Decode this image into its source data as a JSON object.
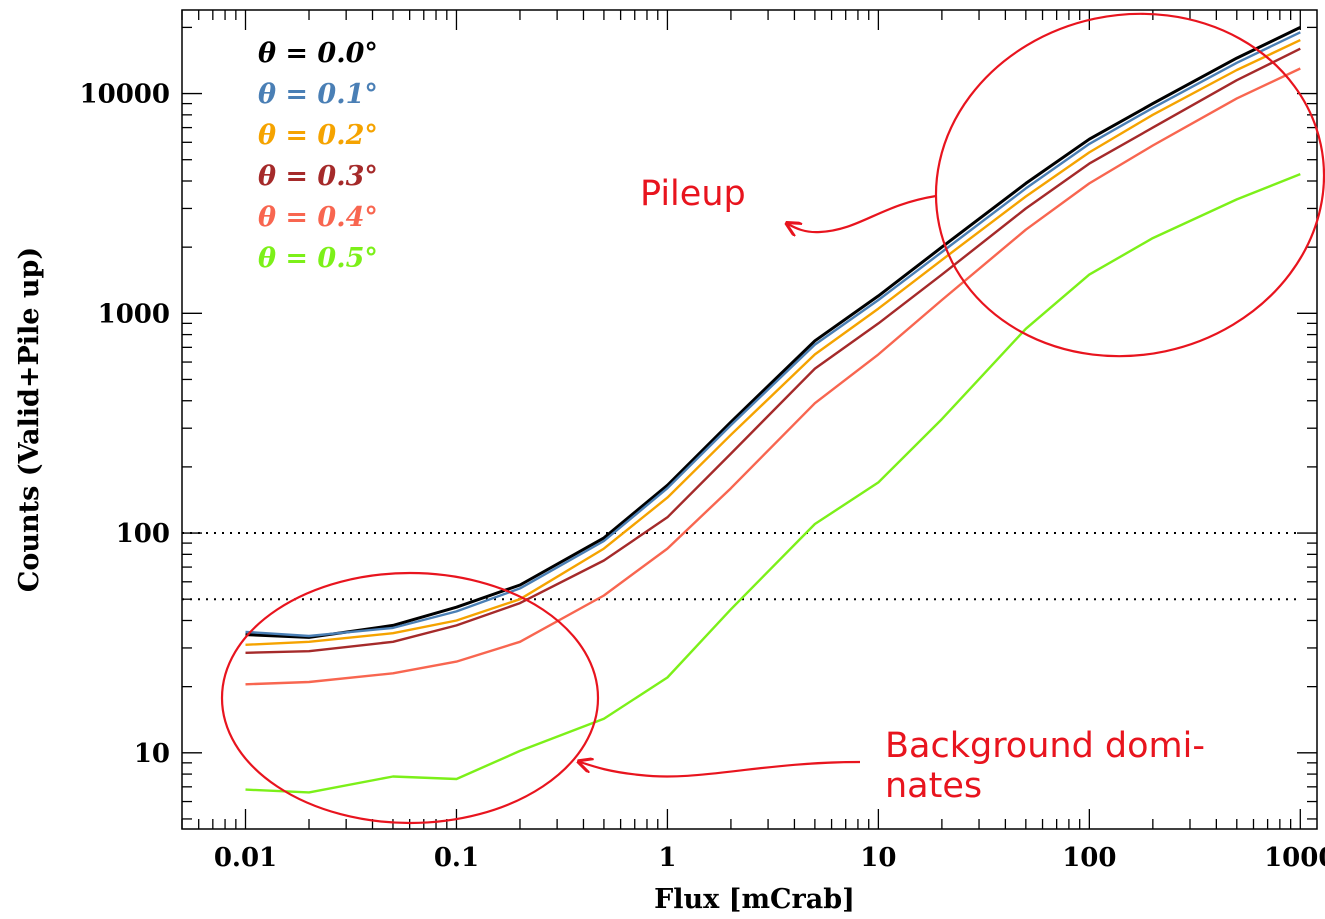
{
  "chart_data": {
    "type": "line",
    "xscale": "log",
    "yscale": "log",
    "xlim": [
      0.005,
      1200
    ],
    "ylim": [
      4.5,
      24000
    ],
    "xlabel": "Flux [mCrab]",
    "ylabel": "Counts (Valid+Pile up)",
    "xticks": [
      {
        "value": 0.01,
        "label": "0.01"
      },
      {
        "value": 0.1,
        "label": "0.1"
      },
      {
        "value": 1,
        "label": "1"
      },
      {
        "value": 10,
        "label": "10"
      },
      {
        "value": 100,
        "label": "100"
      },
      {
        "value": 1000,
        "label": "1000"
      }
    ],
    "yticks": [
      {
        "value": 10,
        "label": "10"
      },
      {
        "value": 100,
        "label": "100"
      },
      {
        "value": 1000,
        "label": "1000"
      },
      {
        "value": 10000,
        "label": "10000"
      }
    ],
    "hlines": [
      {
        "y": 100,
        "style": "dotted"
      },
      {
        "y": 50,
        "style": "dotted"
      }
    ],
    "x": [
      0.01,
      0.02,
      0.05,
      0.1,
      0.2,
      0.5,
      1,
      2,
      5,
      10,
      20,
      50,
      100,
      200,
      500,
      1000
    ],
    "series": [
      {
        "name": "θ = 0.0°",
        "color": "#000000",
        "values": [
          34.5,
          33.5,
          38,
          46,
          58,
          95,
          165,
          320,
          750,
          1200,
          2000,
          3900,
          6200,
          9000,
          14500,
          20000
        ]
      },
      {
        "name": "θ = 0.1°",
        "color": "#4a7fb5",
        "values": [
          35.5,
          34,
          37,
          44,
          56,
          92,
          160,
          310,
          720,
          1150,
          1900,
          3700,
          5900,
          8600,
          13800,
          19000
        ]
      },
      {
        "name": "θ = 0.2°",
        "color": "#f5a300",
        "values": [
          31,
          32,
          35,
          40,
          50,
          85,
          145,
          280,
          650,
          1050,
          1750,
          3400,
          5400,
          8000,
          12800,
          17500
        ]
      },
      {
        "name": "θ = 0.3°",
        "color": "#a52a2a",
        "values": [
          28.5,
          29,
          32,
          38,
          48,
          75,
          118,
          230,
          560,
          900,
          1500,
          3000,
          4800,
          7000,
          11500,
          16000
        ]
      },
      {
        "name": "θ = 0.4°",
        "color": "#f86650",
        "values": [
          20.5,
          21,
          23,
          26,
          32,
          52,
          85,
          160,
          390,
          650,
          1150,
          2400,
          3900,
          5800,
          9500,
          13000
        ]
      },
      {
        "name": "θ = 0.5°",
        "color": "#7cf019",
        "values": [
          6.8,
          6.6,
          7.8,
          7.6,
          10.2,
          14.3,
          22,
          45,
          110,
          170,
          330,
          850,
          1500,
          2200,
          3300,
          4300
        ]
      }
    ],
    "legend": {
      "position": "top-left"
    },
    "annotations": [
      {
        "text": "Pileup"
      },
      {
        "text": "Background domi-\nnates"
      }
    ]
  }
}
